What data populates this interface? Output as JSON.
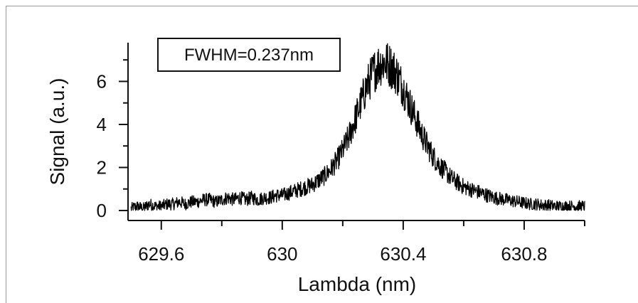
{
  "chart_data": {
    "type": "line",
    "title": "",
    "xlabel": "Lambda (nm)",
    "ylabel": "Signal  (a.u.)",
    "xlim": [
      629.49,
      631.0
    ],
    "ylim": [
      -0.2,
      7.8
    ],
    "x_ticks": [
      629.6,
      630,
      630.4,
      630.8
    ],
    "x_tick_labels": [
      "629.6",
      "630",
      "630.4",
      "630.8"
    ],
    "x_minor_ticks": [
      629.8,
      630.2,
      630.6,
      631.0
    ],
    "y_ticks": [
      0,
      2,
      4,
      6
    ],
    "y_tick_labels": [
      "0",
      "2",
      "4",
      "6"
    ],
    "grid": false,
    "legend": "none",
    "annotation": "FWHM=0.237nm",
    "line_color": "#000000",
    "series": [
      {
        "x": [
          629.5,
          629.52,
          629.54,
          629.56,
          629.58,
          629.6,
          629.62,
          629.64,
          629.66,
          629.68,
          629.7,
          629.72,
          629.74,
          629.76,
          629.78,
          629.8,
          629.82,
          629.84,
          629.86,
          629.88,
          629.9,
          629.92,
          629.94,
          629.96,
          629.98,
          630.0,
          630.02,
          630.04,
          630.06,
          630.08,
          630.1,
          630.12,
          630.14,
          630.16,
          630.18,
          630.2,
          630.22,
          630.24,
          630.26,
          630.28,
          630.3,
          630.32,
          630.34,
          630.36,
          630.38,
          630.4,
          630.42,
          630.44,
          630.46,
          630.48,
          630.5,
          630.52,
          630.54,
          630.56,
          630.58,
          630.6,
          630.62,
          630.64,
          630.66,
          630.68,
          630.7,
          630.72,
          630.74,
          630.76,
          630.78,
          630.8,
          630.82,
          630.84,
          630.86,
          630.88,
          630.9,
          630.92,
          630.94,
          630.96,
          630.98,
          631.0
        ],
        "y": [
          0.1,
          0.2,
          0.1,
          0.3,
          0.2,
          0.2,
          0.3,
          0.3,
          0.4,
          0.3,
          0.4,
          0.4,
          0.5,
          0.5,
          0.4,
          0.5,
          0.6,
          0.5,
          0.6,
          0.5,
          0.6,
          0.5,
          0.6,
          0.6,
          0.7,
          0.7,
          0.8,
          0.9,
          1.0,
          1.1,
          1.2,
          1.4,
          1.6,
          1.9,
          2.3,
          2.8,
          3.4,
          4.2,
          5.0,
          5.8,
          6.4,
          6.8,
          6.9,
          6.7,
          6.3,
          5.7,
          5.0,
          4.3,
          3.6,
          3.0,
          2.5,
          2.1,
          1.8,
          1.5,
          1.3,
          1.1,
          1.0,
          0.9,
          0.8,
          0.7,
          0.6,
          0.55,
          0.5,
          0.45,
          0.4,
          0.35,
          0.3,
          0.3,
          0.25,
          0.25,
          0.2,
          0.2,
          0.2,
          0.2,
          0.2,
          0.2
        ]
      }
    ]
  }
}
